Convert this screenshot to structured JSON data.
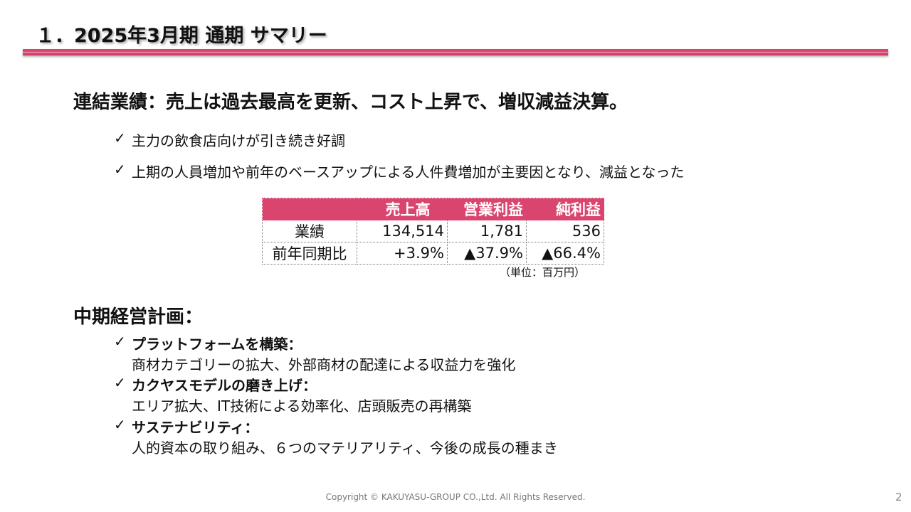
{
  "header": {
    "title": "１．2025年3月期 通期 サマリー",
    "accent_color": "#d9456e"
  },
  "section1": {
    "heading": "連結業績：売上は過去最高を更新、コスト上昇で、増収減益決算。",
    "bullets": [
      "主力の飲食店向けが引き続き好調",
      "上期の人員増加や前年のベースアップによる人件費増加が主要因となり、減益となった"
    ],
    "check_icon": "✓"
  },
  "table": {
    "headers": [
      "",
      "売上高",
      "営業利益",
      "純利益"
    ],
    "rows": [
      [
        "業績",
        "134,514",
        "1,781",
        "536"
      ],
      [
        "前年同期比",
        "+3.9%",
        "▲37.9%",
        "▲66.4%"
      ]
    ],
    "unit": "（単位：百万円）",
    "header_color": "#d9456e"
  },
  "section2": {
    "heading": "中期経営計画：",
    "items": [
      {
        "title": "プラットフォームを構築：",
        "desc": "商材カテゴリーの拡大、外部商材の配達による収益力を強化"
      },
      {
        "title": "カクヤスモデルの磨き上げ：",
        "desc": "エリア拡大、IT技術による効率化、店頭販売の再構築"
      },
      {
        "title": "サステナビリティ：",
        "desc": "人的資本の取り組み、６つのマテリアリティ、今後の成長の種まき"
      }
    ]
  },
  "footer": {
    "copyright": "Copyright © KAKUYASU-GROUP CO.,Ltd. All Rights Reserved.",
    "page": "2"
  }
}
